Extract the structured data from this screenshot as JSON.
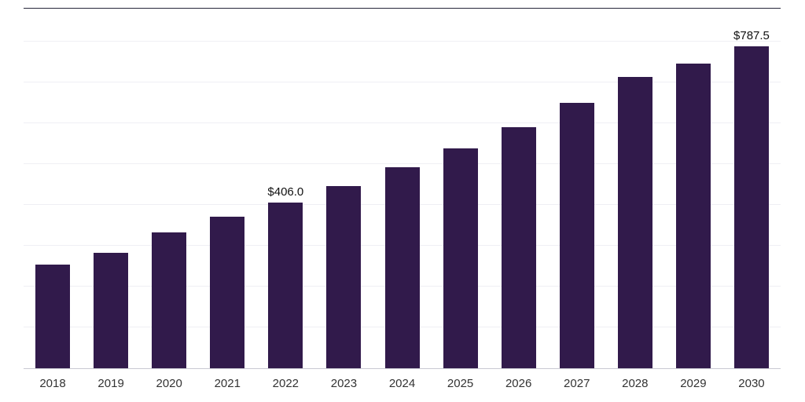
{
  "chart_data": {
    "type": "bar",
    "title": "",
    "xlabel": "",
    "ylabel": "",
    "categories": [
      "2018",
      "2019",
      "2020",
      "2021",
      "2022",
      "2023",
      "2024",
      "2025",
      "2026",
      "2027",
      "2028",
      "2029",
      "2030"
    ],
    "values": [
      254,
      282,
      332,
      371,
      406.0,
      446,
      492,
      538,
      590,
      649,
      712,
      745,
      787.5
    ],
    "data_labels": [
      "",
      "",
      "",
      "",
      "$406.0",
      "",
      "",
      "",
      "",
      "",
      "",
      "",
      "$787.5"
    ],
    "value_prefix": "$",
    "ylim": [
      0,
      880
    ],
    "gridline_step": 100,
    "grid": "horizontal-subtle",
    "legend": "none",
    "bar_color": "#311a4b",
    "top_spine_color": "#26263a",
    "baseline_color": "#c9c9d2",
    "gridline_color": "#efeff4",
    "label_text_color": "#111111",
    "tick_text_color": "#333333"
  }
}
